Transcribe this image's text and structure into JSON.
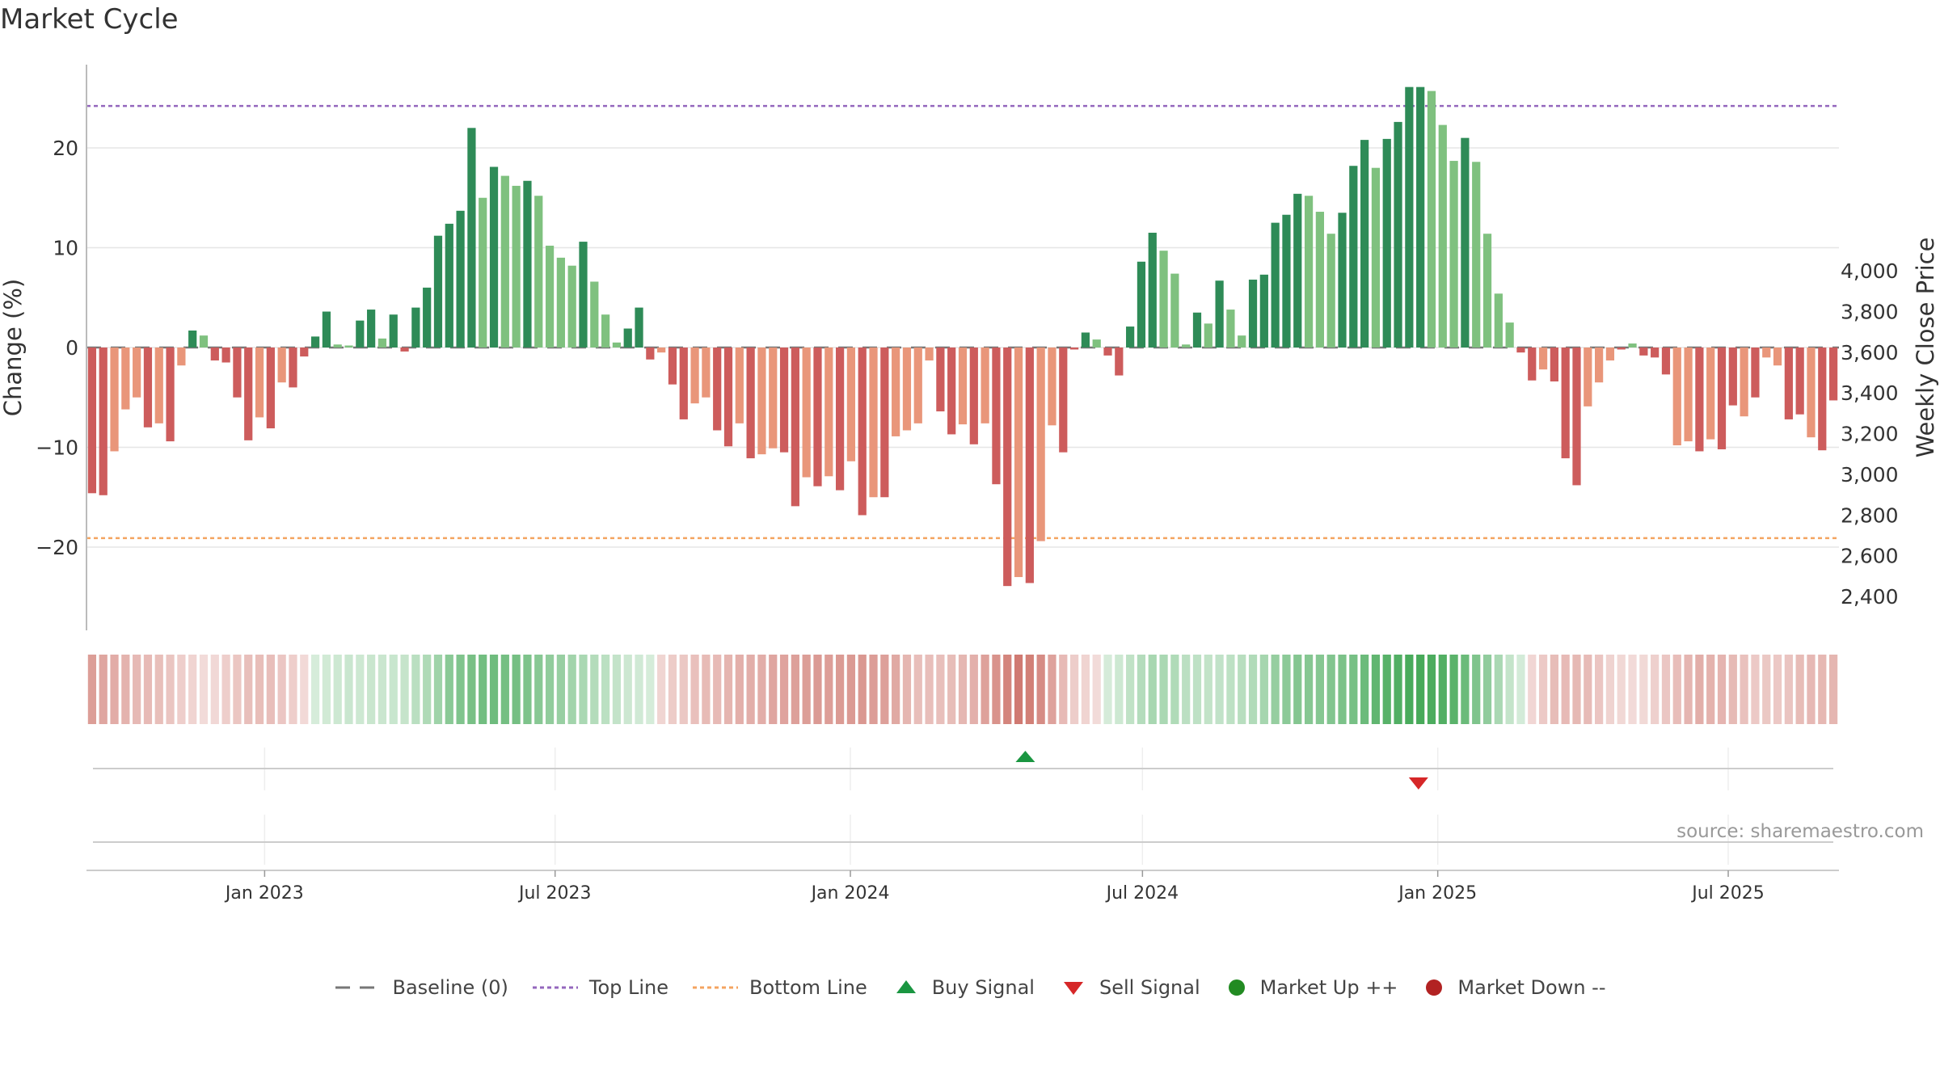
{
  "title": "Market Cycle",
  "source": "source: sharemaestro.com",
  "colors": {
    "dark_green": "#2e8b57",
    "light_green": "#7fc17f",
    "dark_red": "#cd5c5c",
    "light_red": "#e9967a",
    "top_line": "#9467bd",
    "bottom_line": "#f4a460",
    "buy": "#1a9641",
    "sell": "#d62728",
    "market_up": "#228b22",
    "market_down": "#b22222"
  },
  "legend": [
    {
      "label": "Baseline (0)",
      "icon": "dash-line-icon",
      "color": "#777777"
    },
    {
      "label": "Top Line",
      "icon": "dotted-line-icon",
      "color": "#9467bd"
    },
    {
      "label": "Bottom Line",
      "icon": "dotted-line-icon",
      "color": "#f4a460"
    },
    {
      "label": "Buy Signal",
      "icon": "triangle-up-icon",
      "color": "#1a9641"
    },
    {
      "label": "Sell Signal",
      "icon": "triangle-down-icon",
      "color": "#d62728"
    },
    {
      "label": "Market Up ++",
      "icon": "circle-icon",
      "color": "#228b22"
    },
    {
      "label": "Market Down --",
      "icon": "circle-icon",
      "color": "#b22222"
    }
  ],
  "chart_data": {
    "type": "bar",
    "title": "Market Cycle",
    "ylabel": "Change (%)",
    "y2label": "Weekly Close Price",
    "ylim": [
      -28,
      28
    ],
    "yticks": [
      -20,
      -10,
      0,
      10,
      20
    ],
    "ytick_labels": [
      "−20",
      "−10",
      "0",
      "10",
      "20"
    ],
    "y2lim": [
      2300,
      4040
    ],
    "y2ticks": [
      2400,
      2600,
      2800,
      3000,
      3200,
      3400,
      3600,
      3800,
      4000
    ],
    "y2tick_labels": [
      "2,400",
      "2,600",
      "2,800",
      "3,000",
      "3,200",
      "3,400",
      "3,600",
      "3,800",
      "4,000"
    ],
    "top_line": 24.2,
    "bottom_line": -19.1,
    "x_start": "2022-09-16",
    "x_step_days": 7,
    "x_domain": [
      "2022-09-12",
      "2025-09-08"
    ],
    "xticks": [
      "2023-01-01",
      "2023-07-01",
      "2024-01-01",
      "2024-07-01",
      "2025-01-01",
      "2025-07-01"
    ],
    "xtick_labels": [
      "Jan 2023",
      "Jul 2023",
      "Jan 2024",
      "Jul 2024",
      "Jan 2025",
      "Jul 2025"
    ],
    "values": [
      -14.6,
      -14.8,
      -10.4,
      -6.2,
      -5.0,
      -8.0,
      -7.6,
      -9.4,
      -1.8,
      1.7,
      1.2,
      -1.3,
      -1.5,
      -5.0,
      -9.3,
      -7.0,
      -8.1,
      -3.5,
      -4.0,
      -0.9,
      1.1,
      3.6,
      0.3,
      0.2,
      2.7,
      3.8,
      0.9,
      3.3,
      -0.4,
      4.0,
      6.0,
      11.2,
      12.4,
      13.7,
      22.0,
      15.0,
      18.1,
      17.2,
      16.2,
      16.7,
      15.2,
      10.2,
      9.0,
      8.2,
      10.6,
      6.6,
      3.3,
      0.5,
      1.9,
      4.0,
      -1.2,
      -0.5,
      -3.7,
      -7.2,
      -5.6,
      -5.0,
      -8.3,
      -9.9,
      -7.6,
      -11.1,
      -10.7,
      -10.1,
      -10.5,
      -15.9,
      -13.0,
      -13.9,
      -12.9,
      -14.3,
      -11.4,
      -16.8,
      -15.0,
      -15.0,
      -8.9,
      -8.3,
      -7.6,
      -1.3,
      -6.4,
      -8.7,
      -7.7,
      -9.7,
      -7.6,
      -13.7,
      -23.9,
      -23.0,
      -23.6,
      -19.4,
      -7.8,
      -10.5,
      -0.2,
      1.5,
      0.8,
      -0.8,
      -2.8,
      2.1,
      8.6,
      11.5,
      9.7,
      7.4,
      0.3,
      3.5,
      2.4,
      6.7,
      3.8,
      1.2,
      6.8,
      7.3,
      12.5,
      13.3,
      15.4,
      15.2,
      13.6,
      11.4,
      13.5,
      18.2,
      20.8,
      18.0,
      20.9,
      22.6,
      26.1,
      26.1,
      25.7,
      22.3,
      18.7,
      21.0,
      18.6,
      11.4,
      5.4,
      2.5,
      -0.5,
      -3.3,
      -2.2,
      -3.4,
      -11.1,
      -13.8,
      -5.9,
      -3.5,
      -1.3,
      -0.2,
      0.4,
      -0.8,
      -1.0,
      -2.7,
      -9.8,
      -9.4,
      -10.4,
      -9.2,
      -10.2,
      -5.8,
      -6.9,
      -5.0,
      -1.0,
      -1.8,
      -7.2,
      -6.7,
      -9.0,
      -10.3,
      -5.3
    ],
    "shade": [
      "dark",
      "dark",
      "light",
      "light",
      "light",
      "dark",
      "light",
      "dark",
      "light",
      "dark",
      "light",
      "dark",
      "dark",
      "dark",
      "dark",
      "light",
      "dark",
      "light",
      "dark",
      "dark",
      "dark",
      "dark",
      "light",
      "light",
      "dark",
      "dark",
      "light",
      "dark",
      "dark",
      "dark",
      "dark",
      "dark",
      "dark",
      "dark",
      "dark",
      "light",
      "dark",
      "light",
      "light",
      "dark",
      "light",
      "light",
      "light",
      "light",
      "dark",
      "light",
      "light",
      "light",
      "dark",
      "dark",
      "dark",
      "light",
      "dark",
      "dark",
      "light",
      "light",
      "dark",
      "dark",
      "light",
      "dark",
      "light",
      "light",
      "dark",
      "dark",
      "light",
      "dark",
      "light",
      "dark",
      "light",
      "dark",
      "light",
      "dark",
      "light",
      "light",
      "light",
      "light",
      "dark",
      "dark",
      "light",
      "dark",
      "light",
      "dark",
      "dark",
      "light",
      "dark",
      "light",
      "light",
      "dark",
      "dark",
      "dark",
      "light",
      "dark",
      "dark",
      "dark",
      "dark",
      "dark",
      "light",
      "light",
      "light",
      "dark",
      "light",
      "dark",
      "light",
      "light",
      "dark",
      "dark",
      "dark",
      "dark",
      "dark",
      "light",
      "light",
      "light",
      "dark",
      "dark",
      "dark",
      "light",
      "dark",
      "dark",
      "dark",
      "dark",
      "light",
      "light",
      "light",
      "dark",
      "light",
      "light",
      "light",
      "light",
      "dark",
      "dark",
      "light",
      "dark",
      "dark",
      "dark",
      "light",
      "light",
      "light",
      "dark",
      "light",
      "dark",
      "dark",
      "dark",
      "light",
      "light",
      "dark",
      "light",
      "dark",
      "dark",
      "light",
      "dark",
      "light",
      "light",
      "dark",
      "dark",
      "light",
      "dark",
      "dark",
      "light"
    ],
    "signals": [
      {
        "type": "buy",
        "date": "2024-04-19"
      },
      {
        "type": "sell",
        "date": "2024-12-20"
      }
    ]
  }
}
